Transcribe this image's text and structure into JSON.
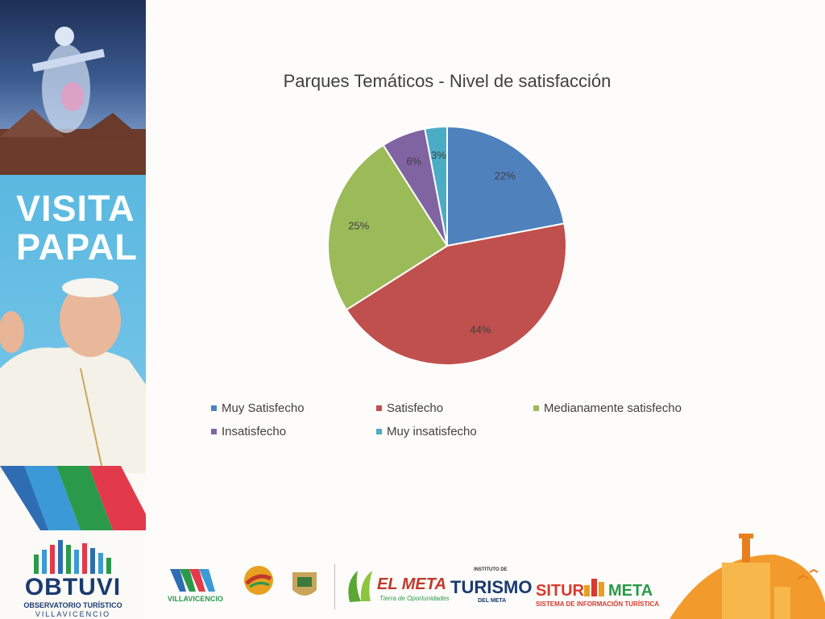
{
  "sidebar": {
    "banner_title_line1": "VISITA",
    "banner_title_line2": "PAPAL",
    "logo_name": "OBTUVI",
    "logo_subtitle1": "OBSERVATORIO TURÍSTICO",
    "logo_subtitle2": "VILLAVICENCIO"
  },
  "footer": {
    "logo1": "VILLAVICENCIO",
    "logo4": "EL META",
    "logo4_sub": "Tierra de Oportunidades",
    "logo5_top": "INSTITUTO DE",
    "logo5": "TURISMO",
    "logo5_sub": "DEL META",
    "logo6": "SITUR",
    "logo6_b": "META",
    "logo6_sub": "SISTEMA DE INFORMACIÓN TURÍSTICA"
  },
  "chart_data": {
    "type": "pie",
    "title": "Parques Temáticos - Nivel de satisfacción",
    "categories": [
      "Muy Satisfecho",
      "Satisfecho",
      "Medianamente satisfecho",
      "Insatisfecho",
      "Muy insatisfecho"
    ],
    "values": [
      22,
      44,
      25,
      6,
      3
    ],
    "labels": [
      "22%",
      "44%",
      "25%",
      "6%",
      "3%"
    ],
    "colors": [
      "#4f81bd",
      "#c0504d",
      "#9bbb59",
      "#8064a2",
      "#4bacc6"
    ],
    "legend_position": "bottom"
  }
}
